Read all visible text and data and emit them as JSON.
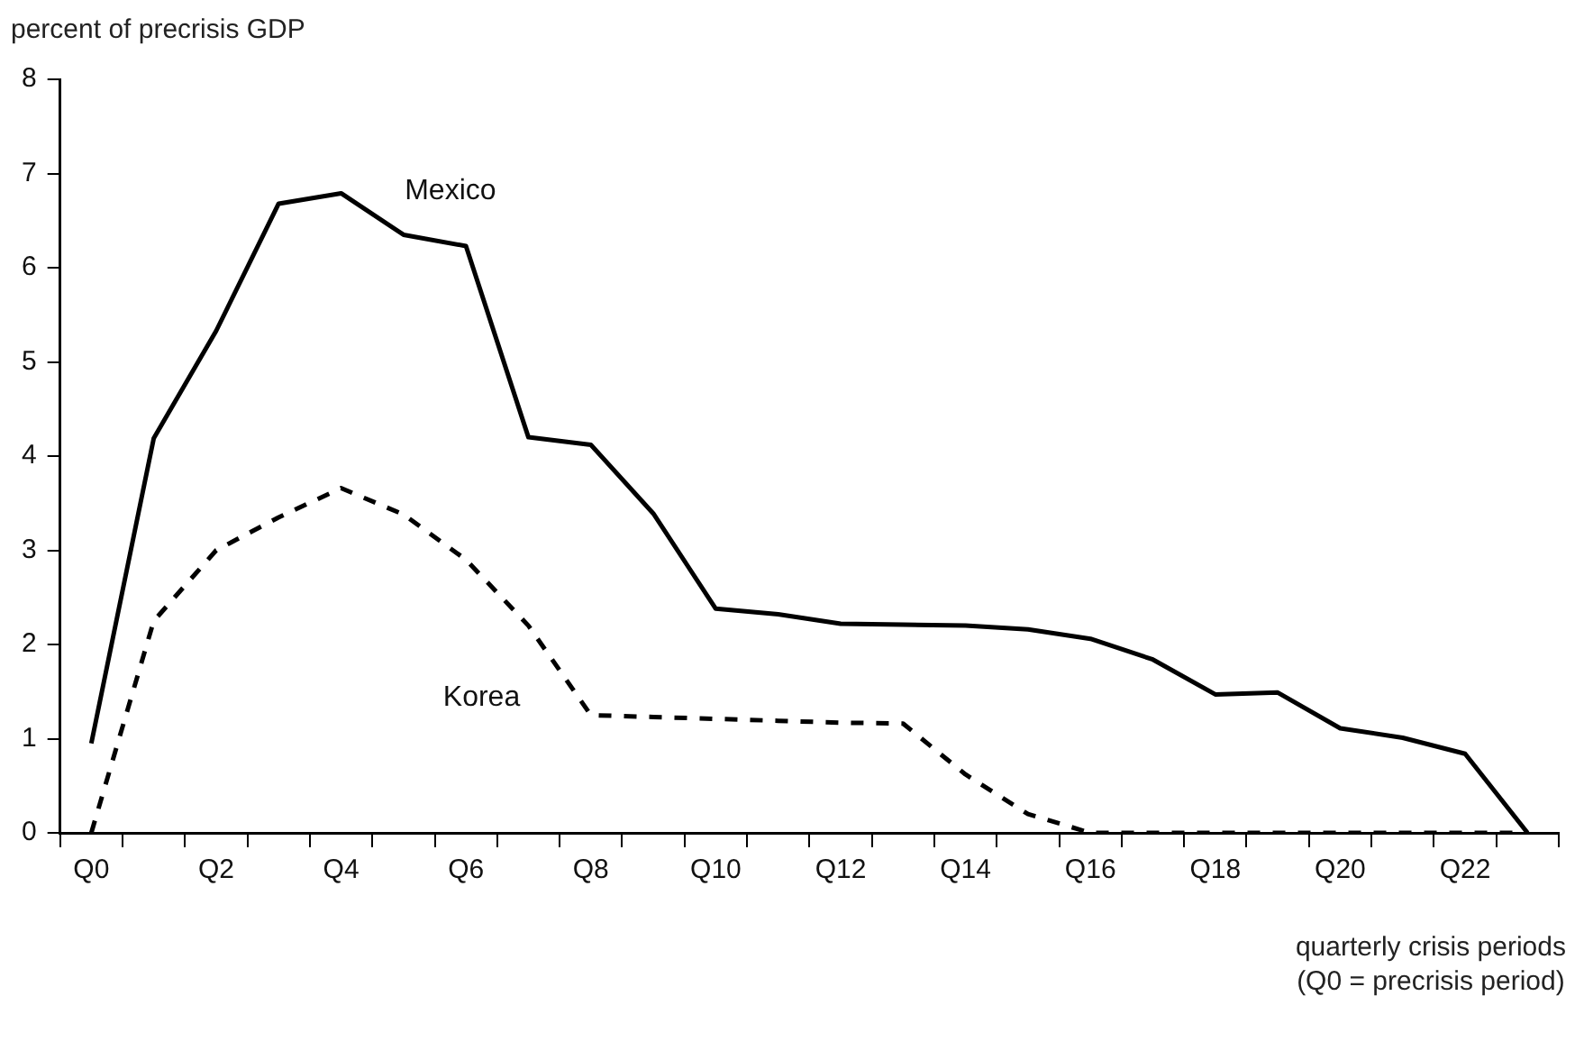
{
  "chart_data": {
    "type": "line",
    "ylabel": "percent of precrisis GDP",
    "xlabel": "quarterly crisis periods\n(Q0 = precrisis period)",
    "categories": [
      "Q0",
      null,
      "Q2",
      null,
      "Q4",
      null,
      "Q6",
      null,
      "Q8",
      null,
      "Q10",
      null,
      "Q12",
      null,
      "Q14",
      null,
      "Q16",
      null,
      "Q18",
      null,
      "Q20",
      null,
      "Q22",
      null
    ],
    "series": [
      {
        "name": "Mexico",
        "color": "#000000",
        "line_style": "solid",
        "values": [
          0.95,
          4.19,
          5.33,
          6.68,
          6.79,
          6.35,
          6.23,
          4.2,
          4.12,
          3.39,
          2.38,
          2.32,
          2.22,
          2.21,
          2.2,
          2.16,
          2.06,
          1.84,
          1.47,
          1.49,
          1.11,
          1.01,
          0.84,
          0
        ]
      },
      {
        "name": "Korea",
        "color": "#000000",
        "line_style": "dashed",
        "values": [
          0,
          2.25,
          3.0,
          3.35,
          3.66,
          3.38,
          2.9,
          2.2,
          1.25,
          1.23,
          1.21,
          1.19,
          1.17,
          1.16,
          0.62,
          0.2,
          0,
          0,
          0,
          0,
          0,
          0,
          0,
          0
        ]
      }
    ],
    "ylim": [
      0,
      8
    ],
    "yticks": [
      0,
      1,
      2,
      3,
      4,
      5,
      6,
      7,
      8
    ],
    "grid": false,
    "legend": false,
    "marker": "none"
  }
}
